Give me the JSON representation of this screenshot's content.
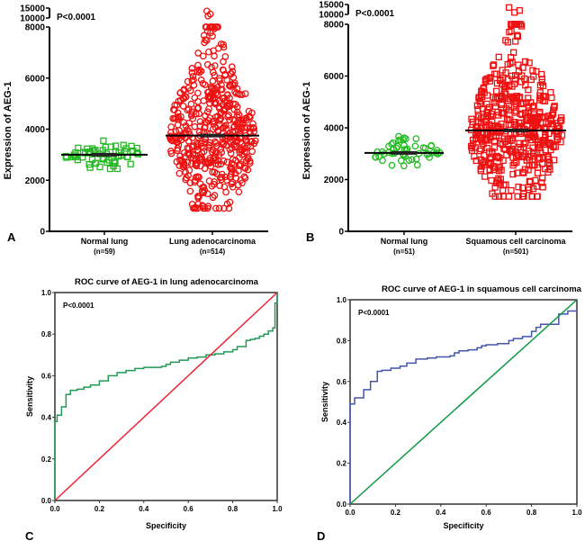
{
  "chart_data": [
    {
      "panel": "A",
      "type": "scatter",
      "ylabel": "Expression of AEG-1",
      "yticks": [
        "0",
        "2000",
        "4000",
        "6000",
        "8000",
        "10000",
        "15000"
      ],
      "ylim": [
        0,
        15000
      ],
      "axis_break": "8000-10000 compressed segment up to 15000",
      "annotation": "P<0.0001",
      "groups": [
        {
          "name": "Normal lung",
          "n_label": "(n=59)",
          "n": 59,
          "marker": "square",
          "color": "#22bb22",
          "mean": 3000,
          "range": [
            2450,
            3800
          ]
        },
        {
          "name": "Lung adenocarcinoma",
          "n_label": "(n=514)",
          "n": 514,
          "marker": "circle",
          "color": "#ee1111",
          "mean": 3750,
          "range": [
            900,
            14000
          ]
        }
      ]
    },
    {
      "panel": "B",
      "type": "scatter",
      "ylabel": "Expression of AEG-1",
      "yticks": [
        "0",
        "2000",
        "4000",
        "6000",
        "8000",
        "10000",
        "15000"
      ],
      "ylim": [
        0,
        15000
      ],
      "axis_break": "8000-10000 compressed segment up to 15000",
      "annotation": "P<0.0001",
      "groups": [
        {
          "name": "Normal lung",
          "n_label": "(n=51)",
          "n": 51,
          "marker": "circle",
          "color": "#22bb22",
          "mean": 3030,
          "range": [
            2380,
            3700
          ]
        },
        {
          "name": "Squamous cell carcinoma",
          "n_label": "(n=501)",
          "n": 501,
          "marker": "square",
          "color": "#ee1111",
          "mean": 3900,
          "range": [
            1350,
            13500
          ]
        }
      ]
    },
    {
      "panel": "C",
      "type": "line",
      "title": "ROC curve of AEG-1 in lung adenocarcinoma",
      "xlabel": "Specificity",
      "ylabel": "Sensitivity",
      "xticks": [
        "0.0",
        "0.2",
        "0.4",
        "0.6",
        "0.8",
        "1.0"
      ],
      "yticks": [
        "0.0",
        "0.2",
        "0.4",
        "0.6",
        "0.8",
        "1.0"
      ],
      "xlim": [
        0,
        1
      ],
      "ylim": [
        0,
        1
      ],
      "annotation": "P<0.0001",
      "series": [
        {
          "name": "ROC",
          "color": "#229955",
          "x": [
            0,
            0,
            0.01,
            0.01,
            0.03,
            0.03,
            0.05,
            0.05,
            0.07,
            0.1,
            0.13,
            0.16,
            0.2,
            0.24,
            0.28,
            0.32,
            0.36,
            0.4,
            0.44,
            0.48,
            0.5,
            0.52,
            0.56,
            0.6,
            0.64,
            0.68,
            0.72,
            0.76,
            0.8,
            0.82,
            0.86,
            0.88,
            0.9,
            0.92,
            0.94,
            0.96,
            0.98,
            0.99,
            0.99,
            1.0
          ],
          "y": [
            0,
            0.38,
            0.38,
            0.41,
            0.41,
            0.45,
            0.45,
            0.51,
            0.53,
            0.535,
            0.545,
            0.555,
            0.575,
            0.6,
            0.615,
            0.625,
            0.635,
            0.64,
            0.64,
            0.645,
            0.655,
            0.665,
            0.675,
            0.685,
            0.69,
            0.7,
            0.705,
            0.715,
            0.725,
            0.74,
            0.77,
            0.775,
            0.78,
            0.79,
            0.8,
            0.815,
            0.83,
            0.855,
            0.95,
            1.0
          ]
        },
        {
          "name": "Reference",
          "color": "#ee2233",
          "x": [
            0,
            1
          ],
          "y": [
            0,
            1
          ]
        }
      ]
    },
    {
      "panel": "D",
      "type": "line",
      "title": "ROC curve of AEG-1 in squamous cell carcinoma",
      "xlabel": "Specificity",
      "ylabel": "Sensitivity",
      "xticks": [
        "0.0",
        "0.2",
        "0.4",
        "0.6",
        "0.8",
        "1.0"
      ],
      "yticks": [
        "0.0",
        "0.2",
        "0.4",
        "0.6",
        "0.8",
        "1.0"
      ],
      "xlim": [
        0,
        1
      ],
      "ylim": [
        0,
        1
      ],
      "annotation": "P<0.0001",
      "series": [
        {
          "name": "ROC",
          "color": "#4455aa",
          "x": [
            0,
            0,
            0.02,
            0.02,
            0.06,
            0.06,
            0.09,
            0.09,
            0.12,
            0.12,
            0.14,
            0.18,
            0.22,
            0.25,
            0.29,
            0.34,
            0.38,
            0.44,
            0.46,
            0.48,
            0.52,
            0.56,
            0.58,
            0.6,
            0.65,
            0.7,
            0.72,
            0.76,
            0.79,
            0.8,
            0.82,
            0.84,
            0.88,
            0.92,
            0.92,
            0.96,
            1.0
          ],
          "y": [
            0,
            0.49,
            0.49,
            0.52,
            0.52,
            0.56,
            0.56,
            0.6,
            0.6,
            0.65,
            0.655,
            0.665,
            0.675,
            0.69,
            0.71,
            0.715,
            0.72,
            0.725,
            0.74,
            0.75,
            0.755,
            0.765,
            0.775,
            0.78,
            0.785,
            0.8,
            0.81,
            0.82,
            0.82,
            0.845,
            0.865,
            0.88,
            0.88,
            0.88,
            0.93,
            0.945,
            0.945
          ]
        },
        {
          "name": "Reference",
          "color": "#119944",
          "x": [
            0,
            1
          ],
          "y": [
            0,
            1
          ]
        }
      ]
    }
  ]
}
